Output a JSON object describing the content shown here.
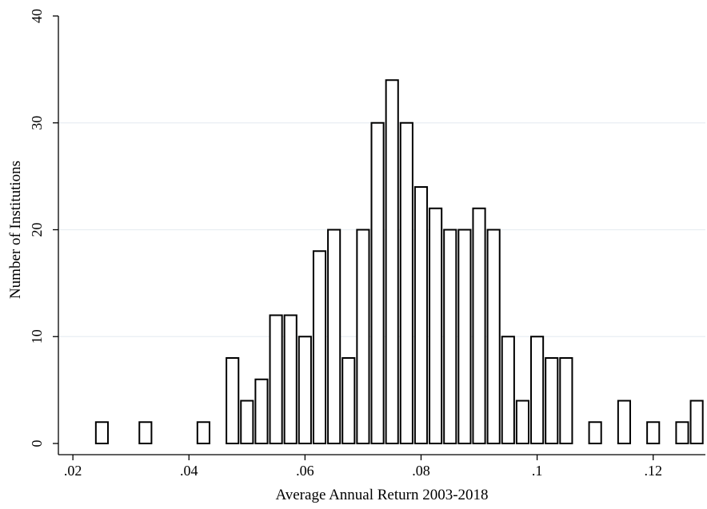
{
  "chart_data": {
    "type": "bar",
    "title": "",
    "xlabel": "Average Annual Return 2003-2018",
    "ylabel": "Number of Institutions",
    "xlim": [
      0.0175,
      0.129
    ],
    "ylim": [
      0,
      40
    ],
    "x_ticks": [
      {
        "value": 0.02,
        "label": ".02"
      },
      {
        "value": 0.04,
        "label": ".04"
      },
      {
        "value": 0.06,
        "label": ".06"
      },
      {
        "value": 0.08,
        "label": ".08"
      },
      {
        "value": 0.1,
        "label": ".1"
      },
      {
        "value": 0.12,
        "label": ".12"
      }
    ],
    "y_ticks": [
      {
        "value": 0,
        "label": "0"
      },
      {
        "value": 10,
        "label": "10"
      },
      {
        "value": 20,
        "label": "20"
      },
      {
        "value": 30,
        "label": "30"
      },
      {
        "value": 40,
        "label": "40"
      }
    ],
    "grid": true,
    "bin_width": 0.0025,
    "bins": [
      {
        "x": 0.025,
        "count": 2
      },
      {
        "x": 0.0325,
        "count": 2
      },
      {
        "x": 0.0425,
        "count": 2
      },
      {
        "x": 0.0475,
        "count": 8
      },
      {
        "x": 0.05,
        "count": 4
      },
      {
        "x": 0.0525,
        "count": 6
      },
      {
        "x": 0.055,
        "count": 12
      },
      {
        "x": 0.0575,
        "count": 12
      },
      {
        "x": 0.06,
        "count": 10
      },
      {
        "x": 0.0625,
        "count": 18
      },
      {
        "x": 0.065,
        "count": 20
      },
      {
        "x": 0.0675,
        "count": 8
      },
      {
        "x": 0.07,
        "count": 20
      },
      {
        "x": 0.0725,
        "count": 30
      },
      {
        "x": 0.075,
        "count": 34
      },
      {
        "x": 0.0775,
        "count": 30
      },
      {
        "x": 0.08,
        "count": 24
      },
      {
        "x": 0.0825,
        "count": 22
      },
      {
        "x": 0.085,
        "count": 20
      },
      {
        "x": 0.0875,
        "count": 20
      },
      {
        "x": 0.09,
        "count": 22
      },
      {
        "x": 0.0925,
        "count": 20
      },
      {
        "x": 0.095,
        "count": 10
      },
      {
        "x": 0.0975,
        "count": 4
      },
      {
        "x": 0.1,
        "count": 10
      },
      {
        "x": 0.1025,
        "count": 8
      },
      {
        "x": 0.105,
        "count": 8
      },
      {
        "x": 0.11,
        "count": 2
      },
      {
        "x": 0.115,
        "count": 4
      },
      {
        "x": 0.12,
        "count": 2
      },
      {
        "x": 0.125,
        "count": 2
      },
      {
        "x": 0.1275,
        "count": 4
      }
    ],
    "colors": {
      "bar_fill": "#ffffff",
      "bar_stroke": "#000000",
      "grid": "#e8eef2",
      "axis": "#000000"
    }
  }
}
